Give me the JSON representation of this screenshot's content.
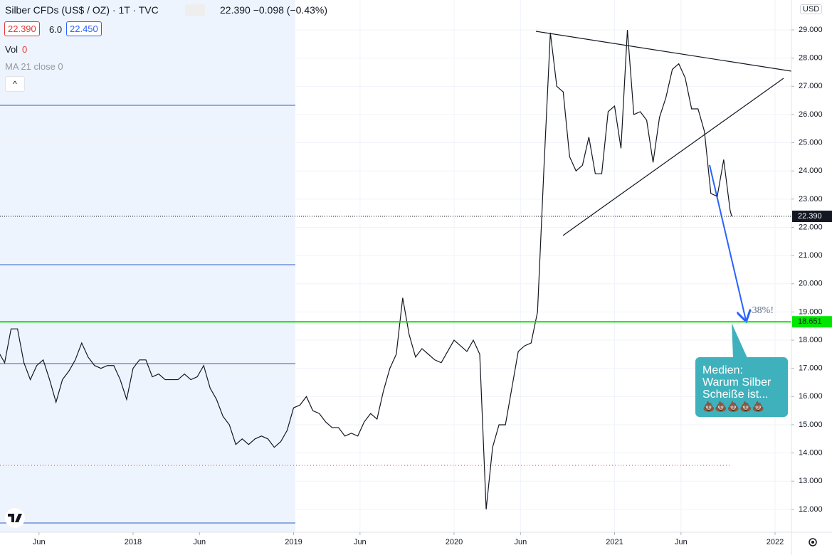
{
  "chart_data": {
    "type": "line",
    "title": "Silber CFDs (US$ / OZ) · 1T · TVC",
    "quote": "22.390 −0.098 (−0.43%)",
    "bid": "22.390",
    "spread": "6.0",
    "ask": "22.450",
    "volume_label": "Vol",
    "volume_value": "0",
    "indicator": "MA 21 close 0",
    "currency": "USD",
    "color": "#131722",
    "grid": true,
    "x": [
      2017.16,
      2017.2,
      2017.24,
      2017.28,
      2017.32,
      2017.36,
      2017.4,
      2017.44,
      2017.48,
      2017.52,
      2017.56,
      2017.6,
      2017.64,
      2017.68,
      2017.72,
      2017.76,
      2017.8,
      2017.84,
      2017.88,
      2017.92,
      2017.96,
      2018.0,
      2018.04,
      2018.08,
      2018.12,
      2018.16,
      2018.2,
      2018.24,
      2018.28,
      2018.32,
      2018.36,
      2018.4,
      2018.44,
      2018.48,
      2018.52,
      2018.56,
      2018.6,
      2018.64,
      2018.68,
      2018.72,
      2018.76,
      2018.8,
      2018.84,
      2018.88,
      2018.92,
      2018.96,
      2019.0,
      2019.04,
      2019.08,
      2019.12,
      2019.16,
      2019.2,
      2019.24,
      2019.28,
      2019.32,
      2019.36,
      2019.4,
      2019.44,
      2019.48,
      2019.52,
      2019.56,
      2019.6,
      2019.64,
      2019.68,
      2019.72,
      2019.76,
      2019.8,
      2019.84,
      2019.88,
      2019.92,
      2019.96,
      2020.0,
      2020.04,
      2020.08,
      2020.12,
      2020.16,
      2020.2,
      2020.24,
      2020.28,
      2020.32,
      2020.36,
      2020.4,
      2020.44,
      2020.48,
      2020.52,
      2020.56,
      2020.6,
      2020.64,
      2020.68,
      2020.72,
      2020.76,
      2020.8,
      2020.84,
      2020.88,
      2020.92,
      2020.96,
      2021.0,
      2021.04,
      2021.08,
      2021.12,
      2021.16,
      2021.2,
      2021.24,
      2021.28,
      2021.32,
      2021.36,
      2021.4,
      2021.44,
      2021.48,
      2021.52,
      2021.56,
      2021.6,
      2021.64,
      2021.68,
      2021.72,
      2021.73
    ],
    "values": [
      17.6,
      17.2,
      18.4,
      18.4,
      17.2,
      16.6,
      17.1,
      17.3,
      16.6,
      15.8,
      16.6,
      16.9,
      17.3,
      17.9,
      17.4,
      17.1,
      17.0,
      17.1,
      17.1,
      16.6,
      15.9,
      17.0,
      17.3,
      17.3,
      16.7,
      16.8,
      16.6,
      16.6,
      16.6,
      16.8,
      16.6,
      16.7,
      17.1,
      16.3,
      15.9,
      15.3,
      15.0,
      14.3,
      14.5,
      14.3,
      14.5,
      14.6,
      14.5,
      14.2,
      14.4,
      14.8,
      15.6,
      15.7,
      16.0,
      15.5,
      15.4,
      15.1,
      14.9,
      14.9,
      14.6,
      14.7,
      14.6,
      15.1,
      15.4,
      15.2,
      16.2,
      17.0,
      17.5,
      19.5,
      18.2,
      17.4,
      17.7,
      17.5,
      17.3,
      17.2,
      17.6,
      18.0,
      17.8,
      17.6,
      18.0,
      17.5,
      12.0,
      14.2,
      15.0,
      15.0,
      16.3,
      17.6,
      17.8,
      17.9,
      19.0,
      24.1,
      28.9,
      27.0,
      26.8,
      24.5,
      24.0,
      24.2,
      25.2,
      23.9,
      23.9,
      26.1,
      26.3,
      24.8,
      29.0,
      26.0,
      26.1,
      25.8,
      24.3,
      25.9,
      26.6,
      27.6,
      27.8,
      27.3,
      26.2,
      26.2,
      25.4,
      23.2,
      23.1,
      24.4,
      22.6,
      22.39
    ],
    "xlim": [
      2017.171,
      2022.102
    ],
    "ylim": [
      11.19,
      30.06
    ],
    "xticks": [
      {
        "value": 2017.414,
        "label": "Jun"
      },
      {
        "value": 2018,
        "label": "2018"
      },
      {
        "value": 2018.414,
        "label": "Jun"
      },
      {
        "value": 2019,
        "label": "2019"
      },
      {
        "value": 2019.414,
        "label": "Jun"
      },
      {
        "value": 2020,
        "label": "2020"
      },
      {
        "value": 2020.414,
        "label": "Jun"
      },
      {
        "value": 2021,
        "label": "2021"
      },
      {
        "value": 2021.414,
        "label": "Jun"
      },
      {
        "value": 2022,
        "label": "2022"
      }
    ],
    "yticks": [
      {
        "value": 12,
        "label": "12.000"
      },
      {
        "value": 13,
        "label": "13.000"
      },
      {
        "value": 14,
        "label": "14.000"
      },
      {
        "value": 15,
        "label": "15.000"
      },
      {
        "value": 16,
        "label": "16.000"
      },
      {
        "value": 17,
        "label": "17.000"
      },
      {
        "value": 18,
        "label": "18.000"
      },
      {
        "value": 19,
        "label": "19.000"
      },
      {
        "value": 20,
        "label": "20.000"
      },
      {
        "value": 21,
        "label": "21.000"
      },
      {
        "value": 22,
        "label": "22.000"
      },
      {
        "value": 23,
        "label": "23.000"
      },
      {
        "value": 24,
        "label": "24.000"
      },
      {
        "value": 25,
        "label": "25.000"
      },
      {
        "value": 26,
        "label": "26.000"
      },
      {
        "value": 27,
        "label": "27.000"
      },
      {
        "value": 28,
        "label": "28.000"
      },
      {
        "value": 29,
        "label": "29.000"
      }
    ],
    "price_lines": [
      {
        "value": 22.39,
        "label": "22.390",
        "color": "#131722",
        "text_color": "#ffffff",
        "style": "dotted"
      },
      {
        "value": 18.651,
        "label": "18.651",
        "color": "#00e600",
        "text_color": "#131722",
        "style": "solid"
      }
    ],
    "arrow_label": "-38%!",
    "callout": [
      "Medien:",
      "Warum Silber",
      "Scheiße ist...",
      "💩💩💩💩💩"
    ]
  }
}
